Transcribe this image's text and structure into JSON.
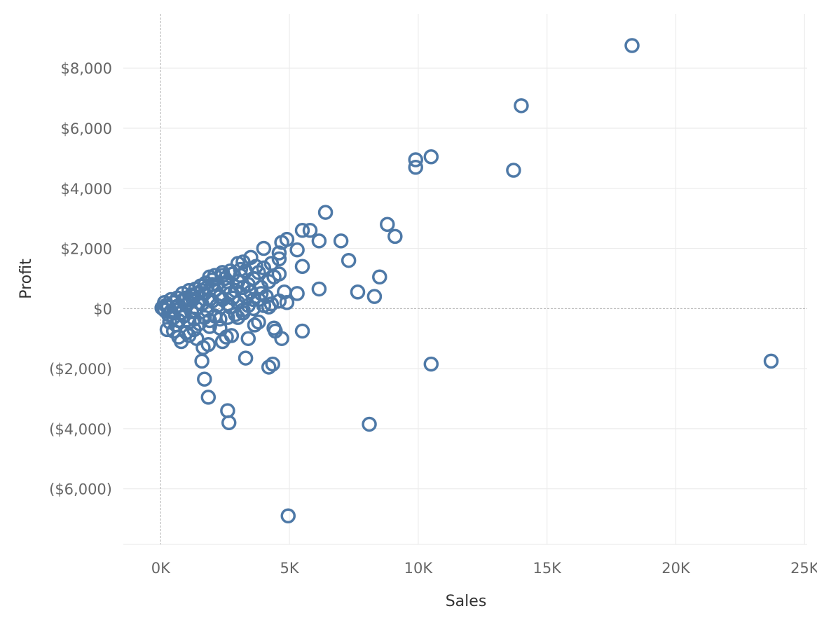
{
  "chart_data": {
    "type": "scatter",
    "xlabel": "Sales",
    "ylabel": "Profit",
    "xlim": [
      -1450,
      25100
    ],
    "ylim": [
      -7850,
      9800
    ],
    "x_ticks": [
      {
        "value": 0,
        "label": "0K"
      },
      {
        "value": 5000,
        "label": "5K"
      },
      {
        "value": 10000,
        "label": "10K"
      },
      {
        "value": 15000,
        "label": "15K"
      },
      {
        "value": 20000,
        "label": "20K"
      },
      {
        "value": 25000,
        "label": "25K"
      }
    ],
    "y_ticks": [
      {
        "value": 8000,
        "label": "$8,000"
      },
      {
        "value": 6000,
        "label": "$6,000"
      },
      {
        "value": 4000,
        "label": "$4,000"
      },
      {
        "value": 2000,
        "label": "$2,000"
      },
      {
        "value": 0,
        "label": "$0"
      },
      {
        "value": -2000,
        "label": "($2,000)"
      },
      {
        "value": -4000,
        "label": "($4,000)"
      },
      {
        "value": -6000,
        "label": "($6,000)"
      }
    ],
    "grid": true,
    "zero_lines": true,
    "marker": "open-circle",
    "color": "#4e79a7",
    "points": [
      [
        18300,
        8750
      ],
      [
        14000,
        6750
      ],
      [
        10500,
        5050
      ],
      [
        9900,
        4950
      ],
      [
        9900,
        4700
      ],
      [
        13700,
        4600
      ],
      [
        6400,
        3200
      ],
      [
        8800,
        2800
      ],
      [
        9100,
        2400
      ],
      [
        7000,
        2250
      ],
      [
        6150,
        2250
      ],
      [
        5500,
        2600
      ],
      [
        5800,
        2600
      ],
      [
        4900,
        2300
      ],
      [
        4700,
        2200
      ],
      [
        5300,
        1950
      ],
      [
        4000,
        2000
      ],
      [
        4600,
        1850
      ],
      [
        4600,
        1650
      ],
      [
        7300,
        1600
      ],
      [
        5500,
        1400
      ],
      [
        8500,
        1050
      ],
      [
        7650,
        550
      ],
      [
        8300,
        400
      ],
      [
        6150,
        650
      ],
      [
        5300,
        500
      ],
      [
        4800,
        550
      ],
      [
        4600,
        250
      ],
      [
        4300,
        150
      ],
      [
        4900,
        200
      ],
      [
        3500,
        1700
      ],
      [
        3200,
        1550
      ],
      [
        3000,
        1500
      ],
      [
        2700,
        1250
      ],
      [
        2400,
        1100
      ],
      [
        4300,
        1500
      ],
      [
        4600,
        1150
      ],
      [
        4400,
        1050
      ],
      [
        4200,
        900
      ],
      [
        3800,
        1200
      ],
      [
        3600,
        1000
      ],
      [
        3400,
        800
      ],
      [
        3200,
        700
      ],
      [
        3000,
        900
      ],
      [
        2900,
        600
      ],
      [
        2700,
        500
      ],
      [
        2500,
        700
      ],
      [
        2300,
        400
      ],
      [
        2100,
        600
      ],
      [
        1900,
        300
      ],
      [
        1700,
        500
      ],
      [
        1500,
        200
      ],
      [
        1300,
        400
      ],
      [
        1100,
        200
      ],
      [
        900,
        300
      ],
      [
        700,
        100
      ],
      [
        500,
        200
      ],
      [
        300,
        50
      ],
      [
        200,
        100
      ],
      [
        100,
        0
      ],
      [
        50,
        20
      ],
      [
        150,
        -50
      ],
      [
        400,
        -100
      ],
      [
        600,
        50
      ],
      [
        800,
        -150
      ],
      [
        1000,
        100
      ],
      [
        1200,
        -100
      ],
      [
        1400,
        0
      ],
      [
        1600,
        150
      ],
      [
        1800,
        -50
      ],
      [
        2000,
        250
      ],
      [
        2200,
        100
      ],
      [
        2400,
        300
      ],
      [
        2600,
        150
      ],
      [
        2800,
        350
      ],
      [
        3000,
        200
      ],
      [
        3300,
        400
      ],
      [
        3600,
        300
      ],
      [
        3900,
        500
      ],
      [
        4100,
        400
      ],
      [
        2000,
        800
      ],
      [
        1800,
        700
      ],
      [
        1600,
        600
      ],
      [
        1400,
        500
      ],
      [
        1200,
        450
      ],
      [
        1000,
        350
      ],
      [
        2600,
        900
      ],
      [
        2200,
        800
      ],
      [
        3100,
        1100
      ],
      [
        2500,
        1000
      ],
      [
        3700,
        1400
      ],
      [
        4000,
        1350
      ],
      [
        3300,
        1250
      ],
      [
        3900,
        700
      ],
      [
        3500,
        550
      ],
      [
        3800,
        300
      ],
      [
        4200,
        50
      ],
      [
        3600,
        0
      ],
      [
        3200,
        -50
      ],
      [
        2900,
        -200
      ],
      [
        2600,
        -300
      ],
      [
        2300,
        -350
      ],
      [
        2100,
        -250
      ],
      [
        1900,
        -400
      ],
      [
        1700,
        -300
      ],
      [
        1500,
        -500
      ],
      [
        1300,
        -350
      ],
      [
        1100,
        -450
      ],
      [
        900,
        -250
      ],
      [
        700,
        -400
      ],
      [
        500,
        -300
      ],
      [
        300,
        -200
      ],
      [
        250,
        -700
      ],
      [
        500,
        -750
      ],
      [
        800,
        -1100
      ],
      [
        1100,
        -900
      ],
      [
        1400,
        -1000
      ],
      [
        1650,
        -1300
      ],
      [
        1850,
        -1200
      ],
      [
        2400,
        -1100
      ],
      [
        2550,
        -950
      ],
      [
        2750,
        -900
      ],
      [
        1600,
        -1750
      ],
      [
        1700,
        -2350
      ],
      [
        1850,
        -2950
      ],
      [
        2600,
        -3400
      ],
      [
        2650,
        -3800
      ],
      [
        3300,
        -1650
      ],
      [
        3400,
        -1000
      ],
      [
        3650,
        -550
      ],
      [
        3800,
        -450
      ],
      [
        4200,
        -1950
      ],
      [
        4350,
        -1850
      ],
      [
        4400,
        -650
      ],
      [
        4450,
        -750
      ],
      [
        4700,
        -1000
      ],
      [
        5500,
        -750
      ],
      [
        3200,
        -150
      ],
      [
        10500,
        -1850
      ],
      [
        8100,
        -3850
      ],
      [
        4950,
        -6900
      ],
      [
        23700,
        -1750
      ],
      [
        1900,
        -600
      ],
      [
        2300,
        -650
      ],
      [
        700,
        -950
      ],
      [
        1000,
        -800
      ],
      [
        1300,
        -700
      ],
      [
        600,
        -550
      ],
      [
        400,
        300
      ],
      [
        650,
        350
      ],
      [
        850,
        500
      ],
      [
        1100,
        600
      ],
      [
        1350,
        650
      ],
      [
        1550,
        750
      ],
      [
        1750,
        850
      ],
      [
        2000,
        950
      ],
      [
        2800,
        1150
      ],
      [
        3100,
        1300
      ],
      [
        2400,
        1200
      ],
      [
        1900,
        1050
      ],
      [
        2100,
        1100
      ],
      [
        150,
        200
      ],
      [
        350,
        -450
      ],
      [
        1250,
        300
      ],
      [
        2700,
        50
      ],
      [
        3000,
        -300
      ],
      [
        3400,
        100
      ],
      [
        4000,
        100
      ]
    ]
  }
}
